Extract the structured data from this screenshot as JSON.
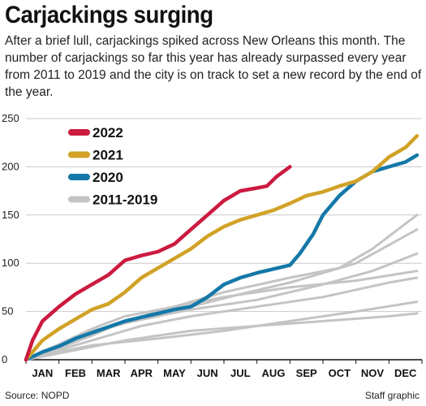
{
  "header": {
    "title": "Carjackings surging",
    "subtitle": "After a brief lull, carjackings spiked across New Orleans this month. The number of carjackings so far this year has already surpassed every year from 2011 to 2019 and the city is on track to set a new record by the end of the year."
  },
  "footer": {
    "source": "Source: NOPD",
    "credit": "Staff graphic"
  },
  "chart_data": {
    "type": "line",
    "title": "Carjackings surging",
    "xlabel": "",
    "ylabel": "",
    "ylim": [
      0,
      250
    ],
    "yticks": [
      0,
      50,
      100,
      150,
      200,
      250
    ],
    "xlim": [
      1,
      13
    ],
    "months": [
      "JAN",
      "FEB",
      "MAR",
      "APR",
      "MAY",
      "JUN",
      "JUL",
      "AUG",
      "SEP",
      "OCT",
      "NOV",
      "DEC"
    ],
    "grid": "horizontal",
    "legend_position": "top-left",
    "series": [
      {
        "name": "2011-2019",
        "color": "#c4c4c4",
        "width": 3,
        "points": [
          [
            1,
            0
          ],
          [
            2.5,
            10
          ],
          [
            4,
            20
          ],
          [
            6,
            30
          ],
          [
            8,
            35
          ],
          [
            10,
            40
          ],
          [
            12,
            45
          ],
          [
            12.85,
            48
          ]
        ]
      },
      {
        "name": "",
        "color": "#c4c4c4",
        "width": 3,
        "points": [
          [
            1,
            0
          ],
          [
            2,
            8
          ],
          [
            3,
            15
          ],
          [
            5,
            22
          ],
          [
            7,
            30
          ],
          [
            9,
            40
          ],
          [
            11,
            50
          ],
          [
            12.85,
            60
          ]
        ]
      },
      {
        "name": "",
        "color": "#c4c4c4",
        "width": 3,
        "points": [
          [
            1,
            0
          ],
          [
            2,
            10
          ],
          [
            3,
            20
          ],
          [
            4.5,
            35
          ],
          [
            6,
            45
          ],
          [
            8,
            55
          ],
          [
            10,
            65
          ],
          [
            12,
            80
          ],
          [
            12.85,
            85
          ]
        ]
      },
      {
        "name": "",
        "color": "#c4c4c4",
        "width": 3,
        "points": [
          [
            1,
            0
          ],
          [
            2,
            12
          ],
          [
            3,
            25
          ],
          [
            4,
            40
          ],
          [
            5.5,
            55
          ],
          [
            7,
            65
          ],
          [
            9,
            75
          ],
          [
            11,
            82
          ],
          [
            12.85,
            92
          ]
        ]
      },
      {
        "name": "",
        "color": "#c4c4c4",
        "width": 3,
        "points": [
          [
            1,
            0
          ],
          [
            2,
            15
          ],
          [
            3,
            30
          ],
          [
            4.5,
            42
          ],
          [
            6,
            52
          ],
          [
            8,
            62
          ],
          [
            10,
            78
          ],
          [
            11.5,
            92
          ],
          [
            12.85,
            110
          ]
        ]
      },
      {
        "name": "",
        "color": "#c4c4c4",
        "width": 3,
        "points": [
          [
            1,
            0
          ],
          [
            2,
            14
          ],
          [
            3,
            28
          ],
          [
            4,
            38
          ],
          [
            5,
            45
          ],
          [
            6,
            55
          ],
          [
            7.5,
            68
          ],
          [
            9,
            80
          ],
          [
            11,
            100
          ],
          [
            12.85,
            135
          ]
        ]
      },
      {
        "name": "",
        "color": "#c4c4c4",
        "width": 3,
        "points": [
          [
            1,
            0
          ],
          [
            2,
            16
          ],
          [
            3,
            32
          ],
          [
            4,
            45
          ],
          [
            5.5,
            55
          ],
          [
            7,
            70
          ],
          [
            9,
            85
          ],
          [
            10.5,
            95
          ],
          [
            11.5,
            115
          ],
          [
            12.85,
            150
          ]
        ]
      },
      {
        "name": "2020",
        "color": "#1478a8",
        "width": 4.5,
        "points": [
          [
            1,
            0
          ],
          [
            1.5,
            8
          ],
          [
            2,
            14
          ],
          [
            2.5,
            22
          ],
          [
            3,
            28
          ],
          [
            3.5,
            34
          ],
          [
            4,
            40
          ],
          [
            4.5,
            44
          ],
          [
            5,
            48
          ],
          [
            5.5,
            52
          ],
          [
            6,
            55
          ],
          [
            6.5,
            65
          ],
          [
            7,
            78
          ],
          [
            7.5,
            85
          ],
          [
            8,
            90
          ],
          [
            8.5,
            94
          ],
          [
            9,
            98
          ],
          [
            9.3,
            110
          ],
          [
            9.7,
            130
          ],
          [
            10,
            150
          ],
          [
            10.5,
            170
          ],
          [
            11,
            185
          ],
          [
            11.5,
            195
          ],
          [
            12,
            200
          ],
          [
            12.5,
            205
          ],
          [
            12.85,
            212
          ]
        ]
      },
      {
        "name": "2021",
        "color": "#d1a227",
        "width": 4.5,
        "points": [
          [
            1,
            0
          ],
          [
            1.5,
            20
          ],
          [
            2,
            32
          ],
          [
            2.5,
            42
          ],
          [
            3,
            52
          ],
          [
            3.5,
            58
          ],
          [
            4,
            70
          ],
          [
            4.5,
            85
          ],
          [
            5,
            95
          ],
          [
            5.5,
            105
          ],
          [
            6,
            115
          ],
          [
            6.5,
            128
          ],
          [
            7,
            138
          ],
          [
            7.5,
            145
          ],
          [
            8,
            150
          ],
          [
            8.5,
            155
          ],
          [
            9,
            162
          ],
          [
            9.5,
            170
          ],
          [
            10,
            174
          ],
          [
            10.5,
            180
          ],
          [
            11,
            185
          ],
          [
            11.5,
            195
          ],
          [
            12,
            210
          ],
          [
            12.5,
            220
          ],
          [
            12.85,
            232
          ]
        ]
      },
      {
        "name": "2022",
        "color": "#cc1a40",
        "width": 4.5,
        "points": [
          [
            1,
            0
          ],
          [
            1.2,
            20
          ],
          [
            1.5,
            40
          ],
          [
            2,
            55
          ],
          [
            2.5,
            68
          ],
          [
            3,
            78
          ],
          [
            3.5,
            88
          ],
          [
            4,
            103
          ],
          [
            4.5,
            108
          ],
          [
            5,
            112
          ],
          [
            5.5,
            120
          ],
          [
            6,
            135
          ],
          [
            6.5,
            150
          ],
          [
            7,
            165
          ],
          [
            7.5,
            175
          ],
          [
            8,
            178
          ],
          [
            8.3,
            180
          ],
          [
            8.6,
            190
          ],
          [
            9,
            200
          ]
        ]
      }
    ],
    "legend": [
      {
        "label": "2022",
        "color": "#cc1a40"
      },
      {
        "label": "2021",
        "color": "#d1a227"
      },
      {
        "label": "2020",
        "color": "#1478a8"
      },
      {
        "label": "2011-2019",
        "color": "#c4c4c4"
      }
    ]
  }
}
